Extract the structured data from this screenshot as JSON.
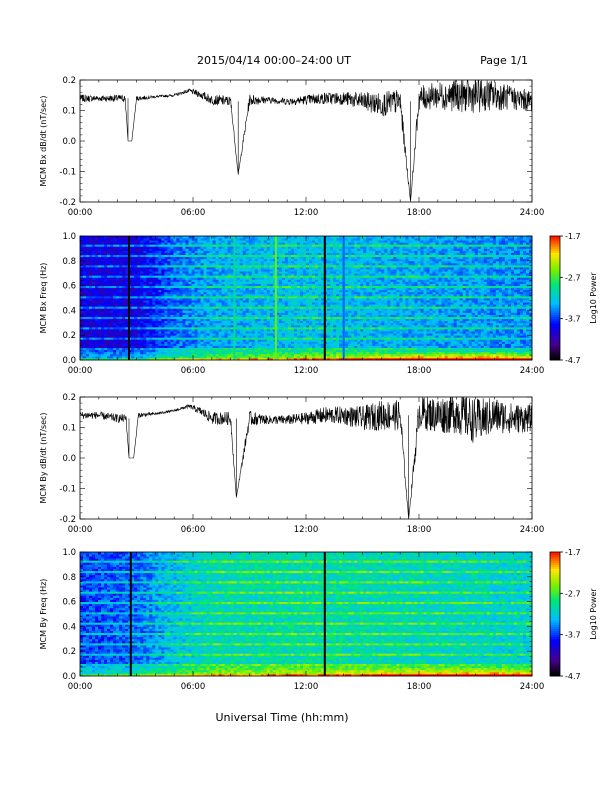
{
  "header": {
    "title": "2015/04/14   00:00–24:00 UT",
    "page": "Page 1/1"
  },
  "chart_data": [
    {
      "type": "line",
      "ylabel": "MCM Bx dB/dt (nT/sec)",
      "xlim": [
        0,
        24
      ],
      "ylim": [
        -0.2,
        0.2
      ],
      "xticks": [
        "00:00",
        "06:00",
        "12:00",
        "18:00",
        "24:00"
      ],
      "yticks": [
        "-0.2",
        "-0.1",
        "0.0",
        "0.1",
        "0.2"
      ],
      "color": "#000000",
      "x": [
        0.0,
        1.0,
        2.0,
        2.4,
        2.55,
        2.75,
        3.0,
        4.0,
        5.0,
        5.8,
        6.3,
        7.0,
        8.0,
        8.4,
        9.0,
        10.0,
        11.0,
        12.0,
        13.0,
        14.0,
        15.0,
        16.0,
        17.0,
        17.55,
        18.0,
        19.0,
        20.0,
        21.0,
        22.0,
        23.0,
        24.0
      ],
      "y": [
        0.14,
        0.14,
        0.14,
        0.14,
        0.0,
        0.0,
        0.14,
        0.145,
        0.15,
        0.165,
        0.155,
        0.135,
        0.13,
        -0.11,
        0.135,
        0.135,
        0.13,
        0.135,
        0.14,
        0.14,
        0.13,
        0.12,
        0.13,
        -0.2,
        0.14,
        0.15,
        0.15,
        0.15,
        0.15,
        0.14,
        0.13
      ],
      "noise": [
        0.012,
        0.01,
        0.012,
        0.012,
        0.0,
        0.0,
        0.008,
        0.004,
        0.004,
        0.006,
        0.012,
        0.016,
        0.018,
        0.0,
        0.02,
        0.01,
        0.012,
        0.016,
        0.02,
        0.022,
        0.03,
        0.04,
        0.042,
        0.0,
        0.04,
        0.045,
        0.055,
        0.058,
        0.05,
        0.04,
        0.035
      ]
    },
    {
      "type": "heatmap",
      "ylabel": "MCM Bx Freq (Hz)",
      "xlim": [
        0,
        24
      ],
      "ylim": [
        0,
        1.0
      ],
      "xticks": [
        "00:00",
        "06:00",
        "12:00",
        "18:00",
        "24:00"
      ],
      "yticks": [
        "0.0",
        "0.2",
        "0.4",
        "0.6",
        "0.8",
        "1.0"
      ],
      "colorbar": {
        "label": "Log10 Power",
        "ticks": [
          "-1.7",
          "-2.7",
          "-3.7",
          "-4.7"
        ],
        "min": -4.7,
        "max": -1.7
      },
      "time_level": [
        [
          0,
          -4.0
        ],
        [
          3,
          -4.0
        ],
        [
          5,
          -3.6
        ],
        [
          7,
          -3.4
        ],
        [
          12,
          -3.3
        ],
        [
          18,
          -3.4
        ],
        [
          24,
          -3.5
        ]
      ],
      "low_freq_boost_time": [
        [
          0,
          0.4
        ],
        [
          12,
          0.7
        ],
        [
          18,
          1.4
        ],
        [
          22,
          1.6
        ],
        [
          24,
          1.2
        ]
      ],
      "vertical_lines": [
        [
          2.6,
          -4.7
        ],
        [
          8.2,
          -3.0
        ],
        [
          10.4,
          -2.6
        ],
        [
          13.0,
          -4.7
        ],
        [
          14.0,
          -3.6
        ]
      ]
    },
    {
      "type": "line",
      "ylabel": "MCM By dB/dt (nT/sec)",
      "xlim": [
        0,
        24
      ],
      "ylim": [
        -0.2,
        0.2
      ],
      "xticks": [
        "00:00",
        "06:00",
        "12:00",
        "18:00",
        "24:00"
      ],
      "yticks": [
        "-0.2",
        "-0.1",
        "0.0",
        "0.1",
        "0.2"
      ],
      "color": "#000000",
      "x": [
        0.0,
        1.0,
        2.0,
        2.45,
        2.6,
        2.85,
        3.1,
        4.0,
        5.0,
        5.8,
        6.5,
        7.0,
        8.0,
        8.3,
        9.0,
        10.0,
        11.0,
        12.0,
        13.0,
        14.0,
        15.0,
        16.0,
        17.0,
        17.45,
        18.0,
        19.0,
        20.0,
        21.0,
        22.0,
        23.0,
        24.0
      ],
      "y": [
        0.14,
        0.14,
        0.13,
        0.13,
        0.0,
        0.0,
        0.14,
        0.145,
        0.155,
        0.17,
        0.15,
        0.13,
        0.13,
        -0.13,
        0.13,
        0.125,
        0.125,
        0.13,
        0.14,
        0.14,
        0.13,
        0.14,
        0.14,
        -0.2,
        0.15,
        0.14,
        0.15,
        0.12,
        0.14,
        0.13,
        0.13
      ],
      "noise": [
        0.012,
        0.012,
        0.014,
        0.014,
        0.0,
        0.0,
        0.008,
        0.004,
        0.004,
        0.006,
        0.015,
        0.02,
        0.022,
        0.0,
        0.025,
        0.014,
        0.016,
        0.02,
        0.028,
        0.03,
        0.04,
        0.05,
        0.05,
        0.0,
        0.055,
        0.06,
        0.07,
        0.075,
        0.06,
        0.05,
        0.045
      ]
    },
    {
      "type": "heatmap",
      "ylabel": "MCM By Freq (Hz)",
      "xlim": [
        0,
        24
      ],
      "ylim": [
        0,
        1.0
      ],
      "xticks": [
        "00:00",
        "06:00",
        "12:00",
        "18:00",
        "24:00"
      ],
      "yticks": [
        "0.0",
        "0.2",
        "0.4",
        "0.6",
        "0.8",
        "1.0"
      ],
      "colorbar": {
        "label": "Log10 Power",
        "ticks": [
          "-1.7",
          "-2.7",
          "-3.7",
          "-4.7"
        ],
        "min": -4.7,
        "max": -1.7
      },
      "time_level": [
        [
          0,
          -3.7
        ],
        [
          3,
          -3.6
        ],
        [
          5,
          -3.3
        ],
        [
          7,
          -3.1
        ],
        [
          12,
          -3.05
        ],
        [
          18,
          -3.1
        ],
        [
          24,
          -3.2
        ]
      ],
      "low_freq_boost_time": [
        [
          0,
          0.3
        ],
        [
          12,
          0.5
        ],
        [
          18,
          0.9
        ],
        [
          22,
          1.2
        ],
        [
          24,
          1.0
        ]
      ],
      "vertical_lines": [
        [
          2.7,
          -4.7
        ],
        [
          13.0,
          -4.7
        ]
      ]
    }
  ],
  "xaxis": {
    "label": "Universal Time (hh:mm)"
  }
}
